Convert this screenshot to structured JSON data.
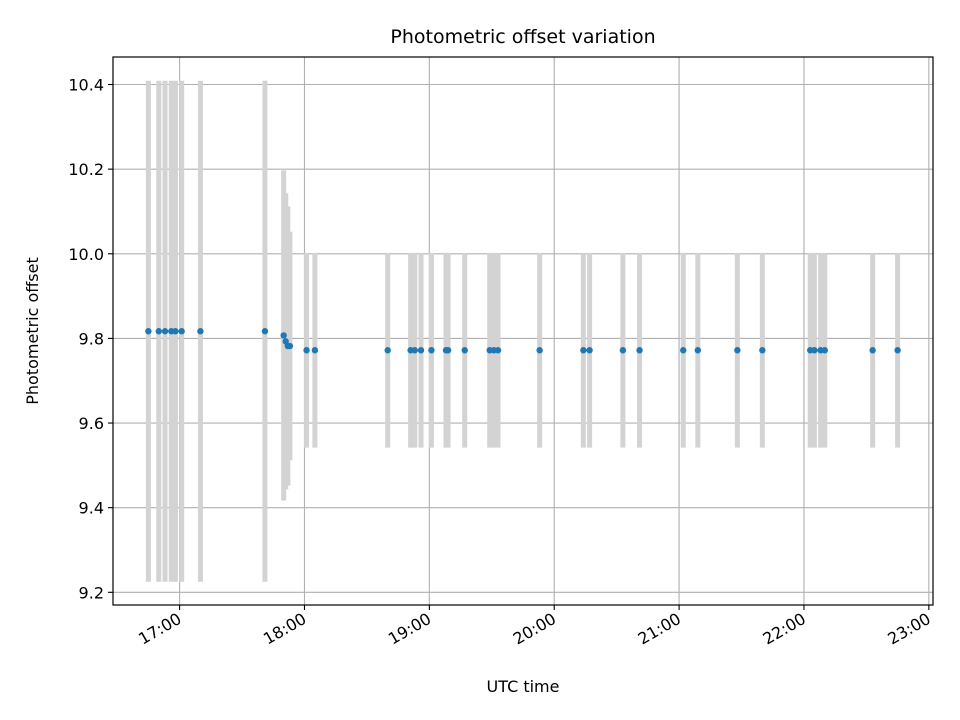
{
  "chart_data": {
    "type": "scatter",
    "title": "Photometric offset variation",
    "xlabel": "UTC time",
    "ylabel": "Photometric offset",
    "x_axis": "time",
    "xlim": [
      "16:28",
      "23:02"
    ],
    "ylim": [
      9.17,
      10.465
    ],
    "x_ticks": [
      "17:00",
      "18:00",
      "19:00",
      "20:00",
      "21:00",
      "22:00",
      "23:00"
    ],
    "y_ticks": [
      9.2,
      9.4,
      9.6,
      9.8,
      10.0,
      10.2,
      10.4
    ],
    "grid": true,
    "colors": {
      "point": "#1f77b4",
      "errorbar": "#d3d3d3",
      "grid": "#b0b0b0"
    },
    "points": [
      {
        "x": "16:45",
        "y": 9.817,
        "err": 0.592
      },
      {
        "x": "16:50",
        "y": 9.817,
        "err": 0.592
      },
      {
        "x": "16:53",
        "y": 9.817,
        "err": 0.592
      },
      {
        "x": "16:56",
        "y": 9.817,
        "err": 0.592
      },
      {
        "x": "16:58",
        "y": 9.817,
        "err": 0.592
      },
      {
        "x": "17:01",
        "y": 9.817,
        "err": 0.592
      },
      {
        "x": "17:10",
        "y": 9.817,
        "err": 0.592
      },
      {
        "x": "17:41",
        "y": 9.817,
        "err": 0.592
      },
      {
        "x": "17:50",
        "y": 9.807,
        "err": 0.39
      },
      {
        "x": "17:51",
        "y": 9.793,
        "err": 0.35
      },
      {
        "x": "17:52",
        "y": 9.782,
        "err": 0.33
      },
      {
        "x": "17:53",
        "y": 9.782,
        "err": 0.27
      },
      {
        "x": "18:01",
        "y": 9.772,
        "err": 0.23
      },
      {
        "x": "18:05",
        "y": 9.772,
        "err": 0.23
      },
      {
        "x": "18:40",
        "y": 9.772,
        "err": 0.23
      },
      {
        "x": "18:51",
        "y": 9.772,
        "err": 0.23
      },
      {
        "x": "18:53",
        "y": 9.772,
        "err": 0.23
      },
      {
        "x": "18:56",
        "y": 9.772,
        "err": 0.23
      },
      {
        "x": "19:01",
        "y": 9.772,
        "err": 0.23
      },
      {
        "x": "19:08",
        "y": 9.772,
        "err": 0.23
      },
      {
        "x": "19:09",
        "y": 9.772,
        "err": 0.23
      },
      {
        "x": "19:17",
        "y": 9.772,
        "err": 0.23
      },
      {
        "x": "19:29",
        "y": 9.772,
        "err": 0.23
      },
      {
        "x": "19:31",
        "y": 9.772,
        "err": 0.23
      },
      {
        "x": "19:33",
        "y": 9.772,
        "err": 0.23
      },
      {
        "x": "19:53",
        "y": 9.772,
        "err": 0.23
      },
      {
        "x": "20:14",
        "y": 9.772,
        "err": 0.23
      },
      {
        "x": "20:17",
        "y": 9.772,
        "err": 0.23
      },
      {
        "x": "20:33",
        "y": 9.772,
        "err": 0.23
      },
      {
        "x": "20:41",
        "y": 9.772,
        "err": 0.23
      },
      {
        "x": "21:02",
        "y": 9.772,
        "err": 0.23
      },
      {
        "x": "21:09",
        "y": 9.772,
        "err": 0.23
      },
      {
        "x": "21:28",
        "y": 9.772,
        "err": 0.23
      },
      {
        "x": "21:40",
        "y": 9.772,
        "err": 0.23
      },
      {
        "x": "22:03",
        "y": 9.772,
        "err": 0.23
      },
      {
        "x": "22:05",
        "y": 9.772,
        "err": 0.23
      },
      {
        "x": "22:08",
        "y": 9.772,
        "err": 0.23
      },
      {
        "x": "22:10",
        "y": 9.772,
        "err": 0.23
      },
      {
        "x": "22:33",
        "y": 9.772,
        "err": 0.23
      },
      {
        "x": "22:45",
        "y": 9.772,
        "err": 0.23
      }
    ]
  }
}
